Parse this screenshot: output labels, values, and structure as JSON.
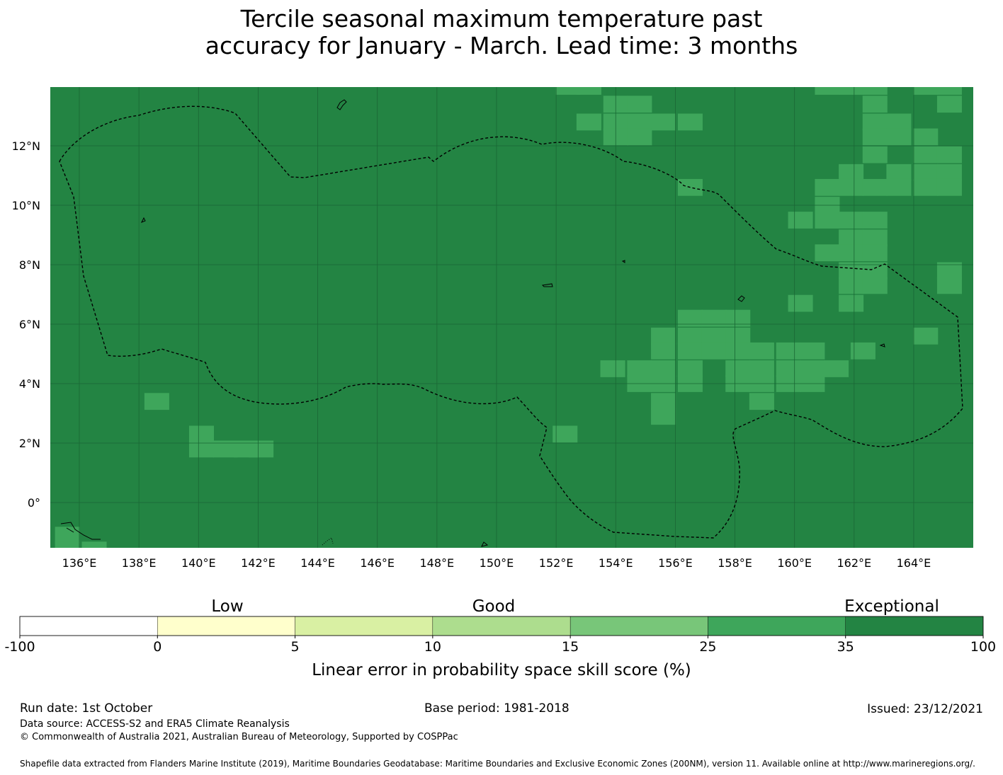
{
  "title": {
    "line1": "Tercile seasonal maximum temperature past",
    "line2": "accuracy for January - March. Lead time: 3 months"
  },
  "map": {
    "lat_labels": [
      "12°N",
      "10°N",
      "8°N",
      "6°N",
      "4°N",
      "2°N",
      "0°"
    ],
    "lat_values": [
      12,
      10,
      8,
      6,
      4,
      2,
      0
    ],
    "lon_labels": [
      "136°E",
      "138°E",
      "140°E",
      "142°E",
      "144°E",
      "146°E",
      "148°E",
      "150°E",
      "152°E",
      "154°E",
      "156°E",
      "158°E",
      "160°E",
      "162°E",
      "164°E"
    ],
    "lon_values": [
      136,
      138,
      140,
      142,
      144,
      146,
      148,
      150,
      152,
      154,
      156,
      158,
      160,
      162,
      164
    ],
    "lon_range": [
      135,
      166
    ],
    "lat_range": [
      -1.5,
      14
    ],
    "grid_resolution_deg": 0.833,
    "base_category": "35-100",
    "base_color": "#238443",
    "cells_25_35": [
      [
        152.4,
        14.0
      ],
      [
        153.1,
        14.0
      ],
      [
        161.1,
        14.0
      ],
      [
        161.9,
        14.0
      ],
      [
        162.7,
        14.0
      ],
      [
        164.4,
        14.0
      ],
      [
        165.2,
        14.0
      ],
      [
        154.0,
        13.4
      ],
      [
        154.8,
        13.4
      ],
      [
        162.7,
        13.4
      ],
      [
        165.2,
        13.4
      ],
      [
        153.1,
        12.8
      ],
      [
        154.0,
        12.8
      ],
      [
        154.8,
        12.8
      ],
      [
        155.6,
        12.8
      ],
      [
        156.5,
        12.8
      ],
      [
        162.7,
        12.8
      ],
      [
        163.5,
        12.8
      ],
      [
        154.0,
        12.3
      ],
      [
        154.8,
        12.3
      ],
      [
        162.7,
        12.3
      ],
      [
        163.5,
        12.3
      ],
      [
        164.4,
        12.3
      ],
      [
        162.7,
        11.7
      ],
      [
        164.4,
        11.7
      ],
      [
        165.2,
        11.7
      ],
      [
        161.9,
        11.1
      ],
      [
        163.5,
        11.1
      ],
      [
        164.4,
        11.1
      ],
      [
        165.2,
        11.1
      ],
      [
        156.5,
        10.6
      ],
      [
        161.1,
        10.6
      ],
      [
        161.9,
        10.6
      ],
      [
        162.7,
        10.6
      ],
      [
        163.5,
        10.6
      ],
      [
        164.4,
        10.6
      ],
      [
        165.2,
        10.6
      ],
      [
        161.1,
        10.0
      ],
      [
        160.2,
        9.5
      ],
      [
        161.1,
        9.5
      ],
      [
        161.9,
        9.5
      ],
      [
        162.7,
        9.5
      ],
      [
        161.9,
        8.9
      ],
      [
        162.7,
        8.9
      ],
      [
        161.1,
        8.4
      ],
      [
        161.9,
        8.4
      ],
      [
        162.7,
        8.4
      ],
      [
        161.9,
        7.8
      ],
      [
        162.7,
        7.8
      ],
      [
        165.2,
        7.8
      ],
      [
        161.9,
        7.3
      ],
      [
        162.7,
        7.3
      ],
      [
        165.2,
        7.3
      ],
      [
        160.2,
        6.7
      ],
      [
        161.9,
        6.7
      ],
      [
        156.5,
        6.2
      ],
      [
        157.3,
        6.2
      ],
      [
        158.1,
        6.2
      ],
      [
        155.6,
        5.6
      ],
      [
        156.5,
        5.6
      ],
      [
        157.3,
        5.6
      ],
      [
        158.1,
        5.6
      ],
      [
        164.4,
        5.6
      ],
      [
        155.6,
        5.1
      ],
      [
        156.5,
        5.1
      ],
      [
        157.3,
        5.1
      ],
      [
        158.1,
        5.1
      ],
      [
        158.9,
        5.1
      ],
      [
        159.8,
        5.1
      ],
      [
        160.6,
        5.1
      ],
      [
        162.3,
        5.1
      ],
      [
        153.9,
        4.5
      ],
      [
        154.8,
        4.5
      ],
      [
        155.6,
        4.5
      ],
      [
        156.5,
        4.5
      ],
      [
        158.1,
        4.5
      ],
      [
        158.9,
        4.5
      ],
      [
        159.8,
        4.5
      ],
      [
        160.6,
        4.5
      ],
      [
        161.4,
        4.5
      ],
      [
        154.8,
        4.0
      ],
      [
        155.6,
        4.0
      ],
      [
        156.5,
        4.0
      ],
      [
        158.1,
        4.0
      ],
      [
        158.9,
        4.0
      ],
      [
        159.8,
        4.0
      ],
      [
        160.6,
        4.0
      ],
      [
        155.6,
        3.4
      ],
      [
        158.9,
        3.4
      ],
      [
        155.6,
        2.9
      ],
      [
        152.3,
        2.3
      ],
      [
        138.6,
        3.4
      ],
      [
        140.1,
        2.3
      ],
      [
        140.1,
        1.8
      ],
      [
        140.9,
        1.8
      ],
      [
        141.6,
        1.8
      ],
      [
        142.1,
        1.8
      ],
      [
        135.6,
        -1.1
      ],
      [
        135.6,
        -1.6
      ],
      [
        136.5,
        -1.6
      ]
    ],
    "cells_25_35_color": "#3ea65b"
  },
  "colorbar": {
    "ticks": [
      "-100",
      "0",
      "5",
      "10",
      "15",
      "25",
      "35",
      "100"
    ],
    "colors": [
      "#ffffff",
      "#ffffcc",
      "#d9f0a3",
      "#addd8e",
      "#78c679",
      "#3ea65b",
      "#238443"
    ],
    "categories": [
      "Low",
      "Good",
      "Exceptional"
    ],
    "label": "Linear error in probability space skill score (%)"
  },
  "footer": {
    "run_date": "Run date: 1st October",
    "base_period": "Base period: 1981-2018",
    "issued": "Issued: 23/12/2021",
    "data_source": "Data source: ACCESS-S2 and ERA5 Climate Reanalysis",
    "copyright": "© Commonwealth of Australia 2021, Australian Bureau of Meteorology, Supported by COSPPac",
    "shapefile": "Shapefile data extracted from Flanders Marine Institute (2019), Maritime Boundaries Geodatabase: Maritime Boundaries and Exclusive Economic Zones (200NM), version 11. Available online at http://www.marineregions.org/."
  }
}
